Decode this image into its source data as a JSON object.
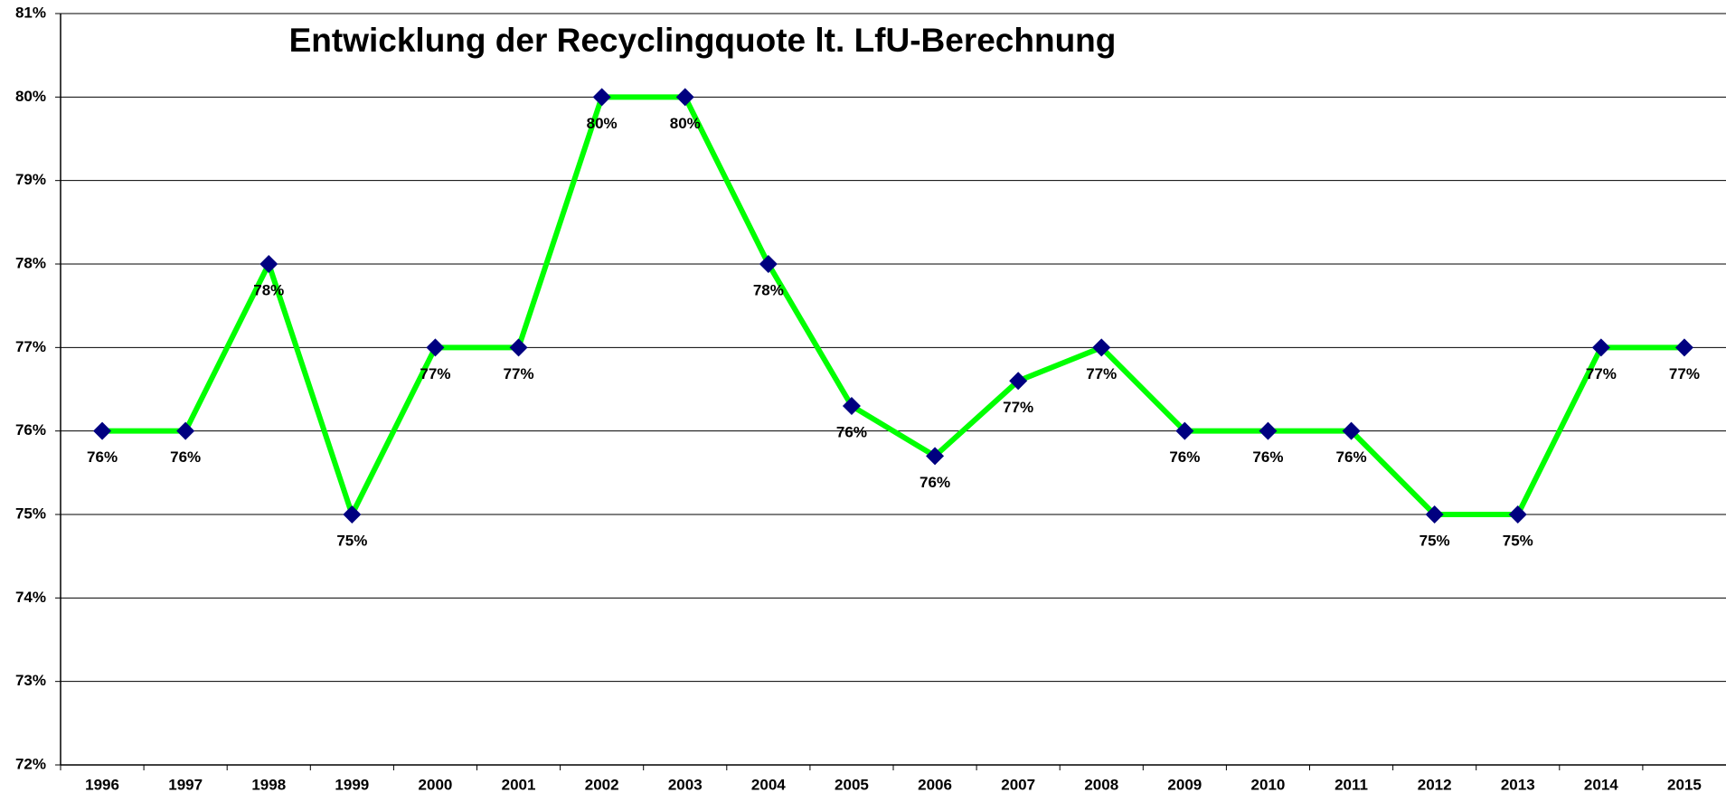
{
  "chart_data": {
    "type": "line",
    "title": "Entwicklung der Recyclingquote lt. LfU-Berechnung",
    "categories": [
      "1996",
      "1997",
      "1998",
      "1999",
      "2000",
      "2001",
      "2002",
      "2003",
      "2004",
      "2005",
      "2006",
      "2007",
      "2008",
      "2009",
      "2010",
      "2011",
      "2012",
      "2013",
      "2014",
      "2015"
    ],
    "series": [
      {
        "name": "Recyclingquote",
        "color": "#00ff00",
        "marker_color": "#000080",
        "values": [
          76,
          76,
          78,
          75,
          77,
          77,
          80,
          80,
          78,
          76.3,
          75.7,
          76.6,
          77,
          76,
          76,
          76,
          75,
          75,
          77,
          77
        ],
        "value_labels": [
          "76%",
          "76%",
          "78%",
          "75%",
          "77%",
          "77%",
          "80%",
          "80%",
          "78%",
          "76%",
          "76%",
          "77%",
          "77%",
          "76%",
          "76%",
          "76%",
          "75%",
          "75%",
          "77%",
          "77%"
        ]
      }
    ],
    "ylim": [
      72,
      81
    ],
    "yticks": [
      {
        "value": 72,
        "label": "72%"
      },
      {
        "value": 73,
        "label": "73%"
      },
      {
        "value": 74,
        "label": "74%"
      },
      {
        "value": 75,
        "label": "75%"
      },
      {
        "value": 76,
        "label": "76%"
      },
      {
        "value": 77,
        "label": "77%"
      },
      {
        "value": 78,
        "label": "78%"
      },
      {
        "value": 79,
        "label": "79%"
      },
      {
        "value": 80,
        "label": "80%"
      },
      {
        "value": 81,
        "label": "81%"
      }
    ],
    "grid": true
  }
}
